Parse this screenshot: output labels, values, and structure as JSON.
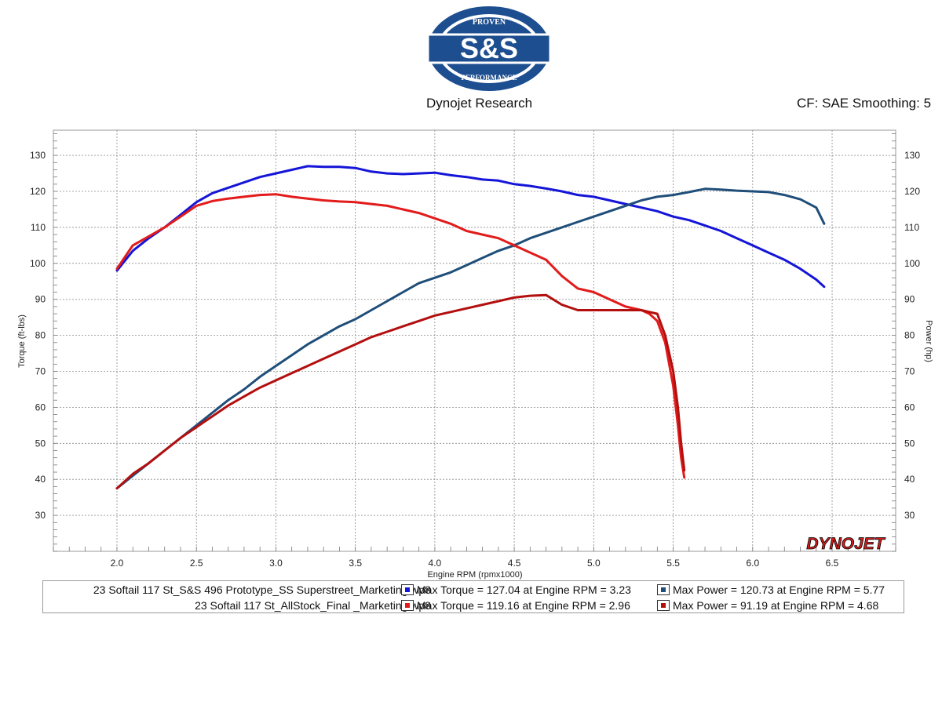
{
  "header": {
    "logo": {
      "top_text": "PROVEN",
      "main_text": "S&S",
      "bottom_text": "PERFORMANCE",
      "color": "#1d4e8f"
    },
    "left": "Dynojet Research",
    "right": "CF: SAE Smoothing: 5"
  },
  "watermark": "DYNOJET",
  "colors": {
    "run1_torque": "#1515d8",
    "run1_power": "#1f4e79",
    "run2_torque": "#e21b1b",
    "run2_power": "#b30f0f"
  },
  "chart_data": {
    "type": "line",
    "xlabel": "Engine RPM (rpmx1000)",
    "ylabel_left": "Torque (ft-lbs)",
    "ylabel_right": "Power (hp)",
    "xlim": [
      1.6,
      6.9
    ],
    "ylim": [
      20,
      137
    ],
    "x_ticks": [
      "2.0",
      "2.5",
      "3.0",
      "3.5",
      "4.0",
      "4.5",
      "5.0",
      "5.5",
      "6.0",
      "6.5"
    ],
    "y_ticks": [
      "30",
      "40",
      "50",
      "60",
      "70",
      "80",
      "90",
      "100",
      "110",
      "120",
      "130"
    ],
    "grid": true,
    "series": [
      {
        "key": "run1_torque",
        "axis": "left",
        "x": [
          2.0,
          2.1,
          2.2,
          2.3,
          2.4,
          2.5,
          2.6,
          2.7,
          2.8,
          2.9,
          3.0,
          3.1,
          3.2,
          3.3,
          3.4,
          3.5,
          3.6,
          3.7,
          3.8,
          3.9,
          4.0,
          4.1,
          4.2,
          4.3,
          4.4,
          4.5,
          4.6,
          4.7,
          4.8,
          4.9,
          5.0,
          5.1,
          5.2,
          5.3,
          5.4,
          5.5,
          5.6,
          5.7,
          5.8,
          5.9,
          6.0,
          6.1,
          6.2,
          6.3,
          6.4,
          6.45
        ],
        "y": [
          98,
          103.5,
          107,
          110,
          113.5,
          117,
          119.5,
          121,
          122.5,
          124,
          125,
          126,
          127,
          126.8,
          126.8,
          126.5,
          125.5,
          125,
          124.8,
          125,
          125.2,
          124.5,
          124,
          123.3,
          123,
          122,
          121.5,
          120.8,
          120,
          119,
          118.5,
          117.5,
          116.5,
          115.5,
          114.5,
          113,
          112,
          110.5,
          109,
          107,
          105,
          103,
          101,
          98.5,
          95.5,
          93.5
        ]
      },
      {
        "key": "run1_power",
        "axis": "right",
        "x": [
          2.0,
          2.1,
          2.2,
          2.3,
          2.4,
          2.5,
          2.6,
          2.7,
          2.8,
          2.9,
          3.0,
          3.1,
          3.2,
          3.3,
          3.4,
          3.5,
          3.6,
          3.7,
          3.8,
          3.9,
          4.0,
          4.1,
          4.2,
          4.3,
          4.4,
          4.5,
          4.6,
          4.7,
          4.8,
          4.9,
          5.0,
          5.1,
          5.2,
          5.3,
          5.4,
          5.5,
          5.6,
          5.7,
          5.8,
          5.9,
          6.0,
          6.1,
          6.2,
          6.3,
          6.4,
          6.45
        ],
        "y": [
          37.5,
          41,
          44.5,
          48,
          51.5,
          55,
          58.5,
          62,
          65,
          68.5,
          71.5,
          74.5,
          77.5,
          80,
          82.5,
          84.5,
          87,
          89.5,
          92,
          94.5,
          96,
          97.5,
          99.5,
          101.5,
          103.5,
          105,
          107,
          108.5,
          110,
          111.5,
          113,
          114.5,
          116,
          117.5,
          118.5,
          119,
          119.8,
          120.7,
          120.5,
          120.2,
          120,
          119.8,
          119,
          117.8,
          115.5,
          111
        ]
      },
      {
        "key": "run2_torque",
        "axis": "left",
        "x": [
          2.0,
          2.1,
          2.2,
          2.3,
          2.4,
          2.5,
          2.6,
          2.7,
          2.8,
          2.9,
          3.0,
          3.1,
          3.2,
          3.3,
          3.4,
          3.5,
          3.6,
          3.7,
          3.8,
          3.9,
          4.0,
          4.1,
          4.2,
          4.3,
          4.4,
          4.5,
          4.6,
          4.7,
          4.8,
          4.9,
          5.0,
          5.1,
          5.2,
          5.3,
          5.35,
          5.4,
          5.45,
          5.5,
          5.53,
          5.55,
          5.57
        ],
        "y": [
          98.5,
          105,
          107.5,
          110,
          113,
          116,
          117.3,
          118,
          118.5,
          119,
          119.2,
          118.5,
          118,
          117.5,
          117.2,
          117,
          116.5,
          116,
          115,
          114,
          112.5,
          111,
          109,
          108,
          107,
          105,
          103,
          101,
          96.5,
          93,
          92,
          90,
          88,
          87,
          86,
          84,
          78,
          66,
          55,
          46,
          40.5
        ]
      },
      {
        "key": "run2_power",
        "axis": "right",
        "x": [
          2.0,
          2.1,
          2.2,
          2.3,
          2.4,
          2.5,
          2.6,
          2.7,
          2.8,
          2.9,
          3.0,
          3.1,
          3.2,
          3.3,
          3.4,
          3.5,
          3.6,
          3.7,
          3.8,
          3.9,
          4.0,
          4.1,
          4.2,
          4.3,
          4.4,
          4.5,
          4.6,
          4.7,
          4.8,
          4.9,
          5.0,
          5.1,
          5.2,
          5.3,
          5.35,
          5.4,
          5.45,
          5.5,
          5.53,
          5.55,
          5.57
        ],
        "y": [
          37.5,
          41.5,
          44.5,
          48,
          51.5,
          54.5,
          57.5,
          60.5,
          63,
          65.5,
          67.5,
          69.5,
          71.5,
          73.5,
          75.5,
          77.5,
          79.5,
          81,
          82.5,
          84,
          85.5,
          86.5,
          87.5,
          88.5,
          89.5,
          90.5,
          91,
          91.2,
          88.5,
          87,
          87,
          87,
          87,
          87,
          86.5,
          86,
          80,
          70,
          60,
          50,
          42.5
        ]
      }
    ]
  },
  "legend": [
    {
      "file": "23 Softail 117 St_S&S 496 Prototype_SS Superstreet_Marketing.wp8",
      "torque": "Max Torque = 127.04 at Engine RPM = 3.23",
      "power": "Max Power = 120.73 at Engine RPM = 5.77"
    },
    {
      "file": "23 Softail 117 St_AllStock_Final _Marketing.wp8",
      "torque": "Max Torque = 119.16 at Engine RPM = 2.96",
      "power": "Max Power = 91.19 at Engine RPM = 4.68"
    }
  ]
}
